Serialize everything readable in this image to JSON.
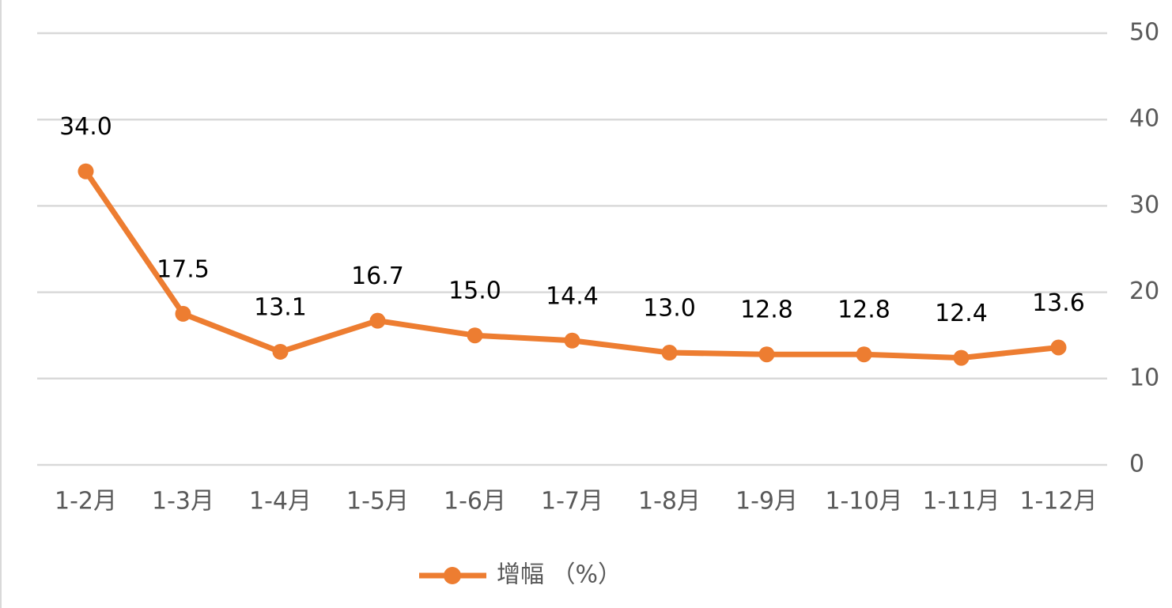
{
  "chart_data": {
    "type": "line",
    "categories": [
      "1-2月",
      "1-3月",
      "1-4月",
      "1-5月",
      "1-6月",
      "1-7月",
      "1-8月",
      "1-9月",
      "1-10月",
      "1-11月",
      "1-12月"
    ],
    "series": [
      {
        "name": "增幅 （%）",
        "color": "#ed7d31",
        "values": [
          34.0,
          17.5,
          13.1,
          16.7,
          15.0,
          14.4,
          13.0,
          12.8,
          12.8,
          12.4,
          13.6
        ],
        "value_labels": [
          "34.0",
          "17.5",
          "13.1",
          "16.7",
          "15.0",
          "14.4",
          "13.0",
          "12.8",
          "12.8",
          "12.4",
          "13.6"
        ]
      }
    ],
    "ylim": [
      0,
      50
    ],
    "yticks": [
      0,
      10,
      20,
      30,
      40,
      50
    ],
    "y_axis_side": "right",
    "grid": true,
    "legend": "bottom"
  }
}
